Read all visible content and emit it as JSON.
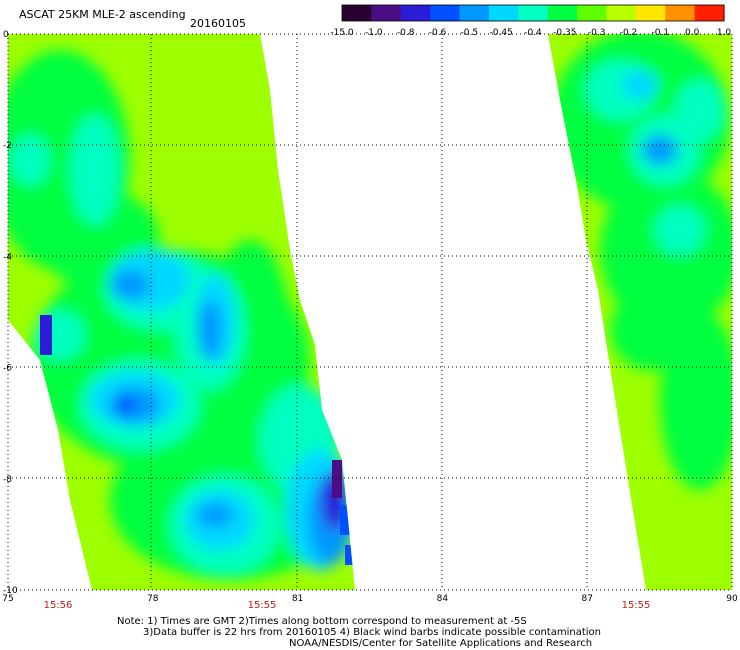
{
  "header": {
    "title": "ASCAT 25KM MLE-2 ascending",
    "date": "20160105"
  },
  "colorbar": {
    "labels": [
      "-15.0",
      "-1.0",
      "-0.8",
      "-0.6",
      "-0.5",
      "-0.45",
      "-0.4",
      "-0.35",
      "-0.3",
      "-0.2",
      "-0.1",
      "0.0",
      "1.0"
    ],
    "colors": [
      "#2a0030",
      "#4b0d86",
      "#2b1cd8",
      "#0050ff",
      "#0098ff",
      "#00d8ff",
      "#00ffc0",
      "#00ff40",
      "#60ff00",
      "#b8ff00",
      "#ffe800",
      "#ff9000",
      "#ff2000"
    ]
  },
  "axes": {
    "x_ticks": [
      "75",
      "78",
      "81",
      "84",
      "87",
      "90"
    ],
    "x_values": [
      75,
      78,
      81,
      84,
      87,
      90
    ],
    "y_ticks": [
      "0",
      "-2",
      "-4",
      "-6",
      "-8",
      "-10"
    ],
    "y_values": [
      0,
      -2,
      -4,
      -6,
      -8,
      -10
    ],
    "lon_range": [
      75,
      90
    ],
    "lat_range": [
      0,
      -10
    ]
  },
  "pass_times": [
    "15:56",
    "15:55",
    "15:55"
  ],
  "notes": [
    "Note: 1) Times are GMT 2)Times along bottom correspond to measurement at -5S",
    "3)Data buffer is 22 hrs from 20160105 4) Black wind barbs indicate possible contamination",
    "NOAA/NESDIS/Center for Satellite Applications and Research"
  ]
}
